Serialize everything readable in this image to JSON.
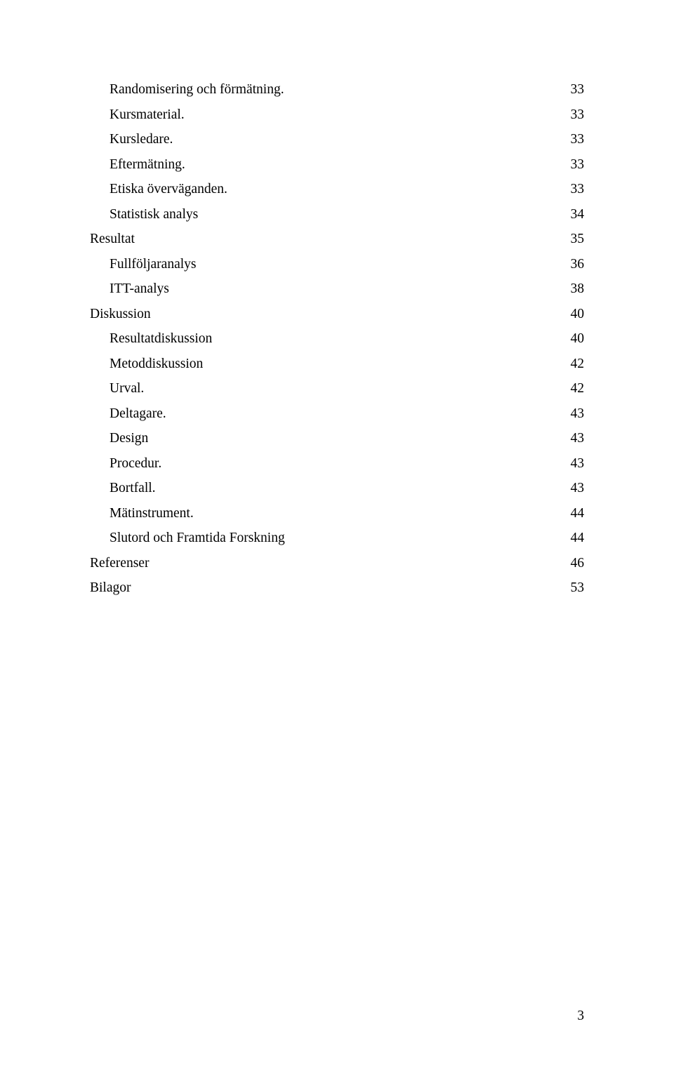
{
  "text_color": "#000000",
  "background_color": "#ffffff",
  "font_family": "Times New Roman",
  "base_font_size_pt": 15,
  "toc": {
    "entries": [
      {
        "label": "Randomisering och förmätning.",
        "page": "33",
        "indent": 1
      },
      {
        "label": "Kursmaterial.",
        "page": "33",
        "indent": 1
      },
      {
        "label": "Kursledare.",
        "page": "33",
        "indent": 1
      },
      {
        "label": "Eftermätning.",
        "page": "33",
        "indent": 1
      },
      {
        "label": "Etiska överväganden.",
        "page": "33",
        "indent": 1
      },
      {
        "label": "Statistisk analys",
        "page": "34",
        "indent": 1
      },
      {
        "label": "Resultat",
        "page": "35",
        "indent": 0
      },
      {
        "label": "Fullföljaranalys",
        "page": "36",
        "indent": 1
      },
      {
        "label": "ITT-analys",
        "page": "38",
        "indent": 1
      },
      {
        "label": "Diskussion",
        "page": "40",
        "indent": 0
      },
      {
        "label": "Resultatdiskussion",
        "page": "40",
        "indent": 1
      },
      {
        "label": "Metoddiskussion",
        "page": "42",
        "indent": 1
      },
      {
        "label": "Urval.",
        "page": "42",
        "indent": 1
      },
      {
        "label": "Deltagare.",
        "page": "43",
        "indent": 1
      },
      {
        "label": "Design",
        "page": "43",
        "indent": 1
      },
      {
        "label": "Procedur.",
        "page": "43",
        "indent": 1
      },
      {
        "label": "Bortfall.",
        "page": "43",
        "indent": 1
      },
      {
        "label": "Mätinstrument.",
        "page": "44",
        "indent": 1
      },
      {
        "label": "Slutord och Framtida Forskning",
        "page": "44",
        "indent": 1
      },
      {
        "label": "Referenser",
        "page": "46",
        "indent": 0
      },
      {
        "label": "Bilagor",
        "page": "53",
        "indent": 0
      }
    ]
  },
  "page_number": "3"
}
